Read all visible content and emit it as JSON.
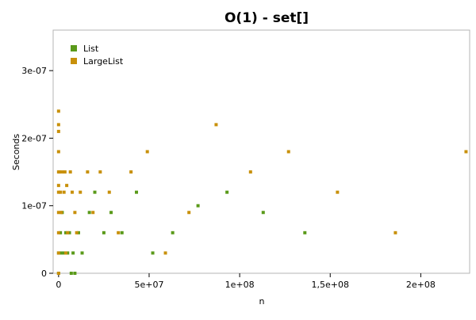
{
  "chart_data": {
    "type": "scatter",
    "title": "O(1) - set[]",
    "xlabel": "n",
    "ylabel": "Seconds",
    "xlim": [
      -3000000,
      227000000
    ],
    "ylim": [
      0,
      3.6e-07
    ],
    "x_ticks": [
      {
        "value": 0,
        "label": "0"
      },
      {
        "value": 50000000,
        "label": "5e+07"
      },
      {
        "value": 100000000,
        "label": "1e+08"
      },
      {
        "value": 150000000,
        "label": "1,5e+08"
      },
      {
        "value": 200000000,
        "label": "2e+08"
      }
    ],
    "y_ticks": [
      {
        "value": 0,
        "label": "0"
      },
      {
        "value": 1e-07,
        "label": "1e-07"
      },
      {
        "value": 2e-07,
        "label": "2e-07"
      },
      {
        "value": 3e-07,
        "label": "3e-07"
      }
    ],
    "grid": false,
    "legend_position": "top-left",
    "series": [
      {
        "name": "List",
        "color": "#5a9a1a",
        "points": [
          [
            0,
            0
          ],
          [
            0,
            3e-08
          ],
          [
            1000000,
            6e-08
          ],
          [
            1500000,
            3e-08
          ],
          [
            2000000,
            9e-08
          ],
          [
            3000000,
            3e-08
          ],
          [
            4000000,
            6e-08
          ],
          [
            5000000,
            3e-08
          ],
          [
            6000000,
            6e-08
          ],
          [
            7000000,
            0
          ],
          [
            8000000,
            3e-08
          ],
          [
            9000000,
            0
          ],
          [
            11000000,
            6e-08
          ],
          [
            13000000,
            3e-08
          ],
          [
            17000000,
            9e-08
          ],
          [
            20000000,
            1.2e-07
          ],
          [
            25000000,
            6e-08
          ],
          [
            29000000,
            9e-08
          ],
          [
            35000000,
            6e-08
          ],
          [
            43000000,
            1.2e-07
          ],
          [
            52000000,
            3e-08
          ],
          [
            63000000,
            6e-08
          ],
          [
            77000000,
            1e-07
          ],
          [
            93000000,
            1.2e-07
          ],
          [
            113000000,
            9e-08
          ],
          [
            136000000,
            6e-08
          ]
        ]
      },
      {
        "name": "LargeList",
        "color": "#c8900a",
        "points": [
          [
            0,
            2.4e-07
          ],
          [
            0,
            2.2e-07
          ],
          [
            0,
            2.1e-07
          ],
          [
            0,
            1.8e-07
          ],
          [
            0,
            1.5e-07
          ],
          [
            0,
            1.3e-07
          ],
          [
            0,
            1.2e-07
          ],
          [
            0,
            9e-08
          ],
          [
            0,
            6e-08
          ],
          [
            0,
            3e-08
          ],
          [
            0,
            0
          ],
          [
            500000,
            1.5e-07
          ],
          [
            1000000,
            1.2e-07
          ],
          [
            1500000,
            9e-08
          ],
          [
            2000000,
            1.5e-07
          ],
          [
            3000000,
            1.2e-07
          ],
          [
            3500000,
            1.5e-07
          ],
          [
            4000000,
            3e-08
          ],
          [
            4500000,
            1.3e-07
          ],
          [
            5000000,
            6e-08
          ],
          [
            6500000,
            1.5e-07
          ],
          [
            7500000,
            1.2e-07
          ],
          [
            9000000,
            9e-08
          ],
          [
            10000000,
            6e-08
          ],
          [
            12000000,
            1.2e-07
          ],
          [
            16000000,
            1.5e-07
          ],
          [
            19000000,
            9e-08
          ],
          [
            23000000,
            1.5e-07
          ],
          [
            28000000,
            1.2e-07
          ],
          [
            33000000,
            6e-08
          ],
          [
            40000000,
            1.5e-07
          ],
          [
            49000000,
            1.8e-07
          ],
          [
            59000000,
            3e-08
          ],
          [
            72000000,
            9e-08
          ],
          [
            87000000,
            2.2e-07
          ],
          [
            106000000,
            1.5e-07
          ],
          [
            127000000,
            1.8e-07
          ],
          [
            154000000,
            1.2e-07
          ],
          [
            186000000,
            6e-08
          ],
          [
            225000000,
            1.8e-07
          ]
        ]
      }
    ]
  }
}
